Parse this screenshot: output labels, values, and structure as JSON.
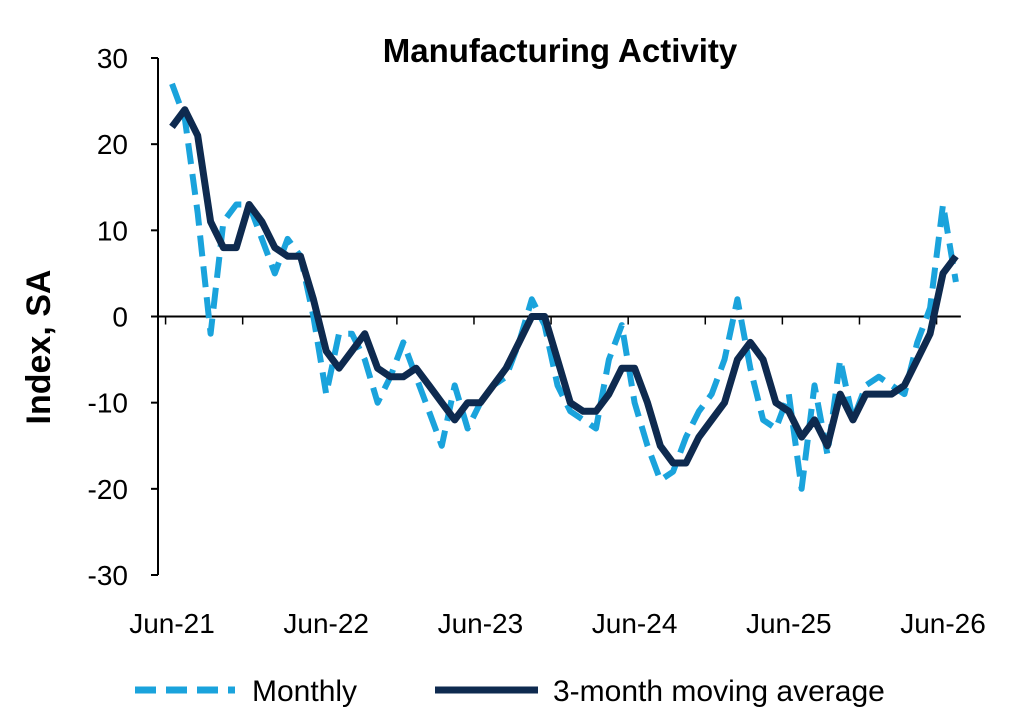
{
  "chart_data": {
    "type": "line",
    "title": "Manufacturing Activity",
    "xlabel": "",
    "ylabel": "Index, SA",
    "ylim": [
      -30,
      30
    ],
    "yticks": [
      "30",
      "20",
      "10",
      "0",
      "-10",
      "-20",
      "-30"
    ],
    "xticks": [
      "Jun-21",
      "Jun-22",
      "Jun-23",
      "Jun-24",
      "Jun-25",
      "Jun-26"
    ],
    "x_start": "Jun-21",
    "x_end": "Jul-26",
    "grid": false,
    "legend_position": "bottom",
    "series": [
      {
        "name": "Monthly",
        "style": "dashed",
        "color": "#1aa3dc",
        "values": [
          27,
          23,
          12,
          -2,
          11,
          13,
          13,
          9,
          5,
          9,
          7,
          0,
          -9,
          -2,
          -2,
          -5,
          -10,
          -7,
          -3,
          -7,
          -11,
          -15,
          -8,
          -13,
          -10,
          -8,
          -7,
          -3,
          2,
          -1,
          -8,
          -11,
          -12,
          -13,
          -5,
          -1,
          -10,
          -15,
          -19,
          -18,
          -14,
          -11,
          -9,
          -5,
          2,
          -6,
          -12,
          -13,
          -9,
          -20,
          -8,
          -16,
          -5,
          -12,
          -8,
          -7,
          -8,
          -9,
          -3,
          1,
          13,
          4
        ]
      },
      {
        "name": "3-month moving average",
        "style": "solid",
        "color": "#0e2a4f",
        "values": [
          22,
          24,
          21,
          11,
          8,
          8,
          13,
          11,
          8,
          7,
          7,
          2,
          -4,
          -6,
          -4,
          -2,
          -6,
          -7,
          -7,
          -6,
          -8,
          -10,
          -12,
          -10,
          -10,
          -8,
          -6,
          -3,
          0,
          0,
          -5,
          -10,
          -11,
          -11,
          -9,
          -6,
          -6,
          -10,
          -15,
          -17,
          -17,
          -14,
          -12,
          -10,
          -5,
          -3,
          -5,
          -10,
          -11,
          -14,
          -12,
          -15,
          -9,
          -12,
          -9,
          -9,
          -9,
          -8,
          -5,
          -2,
          5,
          7
        ]
      }
    ]
  },
  "legend": {
    "monthly_label": "Monthly",
    "moving_average_label": "3-month moving average"
  }
}
